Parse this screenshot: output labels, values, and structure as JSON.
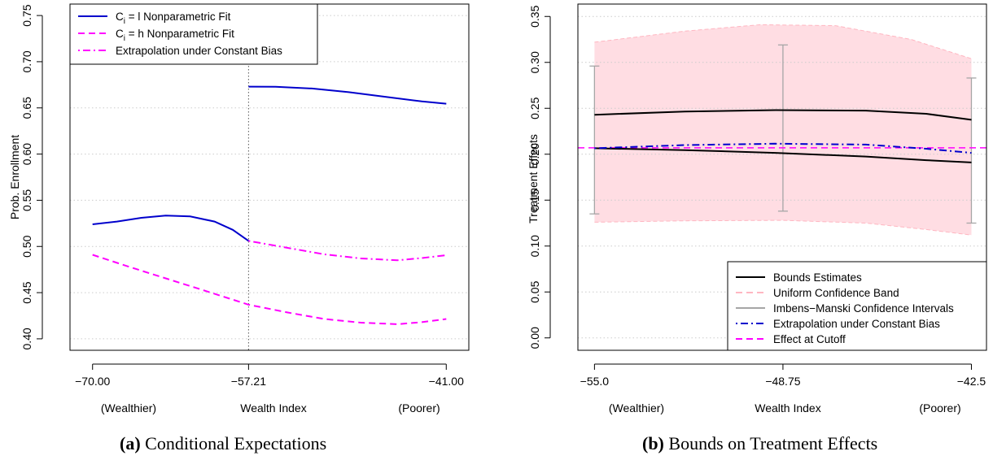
{
  "colors": {
    "blue": "#0000cc",
    "magenta": "#ff00ff",
    "black": "#000000",
    "band_fill": "#ffdde3",
    "band_edge": "#ffb6c1",
    "ci_gray": "#a6a6a6",
    "grid": "#cccccc"
  },
  "captions": {
    "a_tag": "(a)",
    "a_text": "Conditional Expectations",
    "b_tag": "(b)",
    "b_text": "Bounds on Treatment Effects"
  },
  "chart_data": [
    {
      "type": "line",
      "ylabel": "Prob. Enrollment",
      "xlabel": "Wealth Index",
      "xlabel_left": "(Wealthier)",
      "xlabel_right": "(Poorer)",
      "xlim": [
        -70.0,
        -41.0
      ],
      "ylim": [
        0.4,
        0.75
      ],
      "x_ticks": [
        -70.0,
        -57.21,
        -41.0
      ],
      "x_tick_labels": [
        "−70.00",
        "−57.21",
        "−41.00"
      ],
      "y_ticks": [
        0.4,
        0.45,
        0.5,
        0.55,
        0.6,
        0.65,
        0.7,
        0.75
      ],
      "y_tick_labels": [
        "0.40",
        "0.45",
        "0.50",
        "0.55",
        "0.60",
        "0.65",
        "0.70",
        "0.75"
      ],
      "cutoff": -57.21,
      "grid": true,
      "legend_position": "top-left",
      "series": [
        {
          "legend_main": "C",
          "legend_sub": "i",
          "legend_rest": " = l  Nonparametric Fit",
          "style": "solid",
          "color": "#0000cc",
          "segments": [
            [
              [
                -70.0,
                0.524
              ],
              [
                -68.0,
                0.527
              ],
              [
                -66.0,
                0.531
              ],
              [
                -64.0,
                0.5335
              ],
              [
                -62.0,
                0.5325
              ],
              [
                -60.0,
                0.527
              ],
              [
                -58.5,
                0.518
              ],
              [
                -57.21,
                0.506
              ]
            ],
            [
              [
                -57.21,
                0.673
              ],
              [
                -55.0,
                0.6728
              ],
              [
                -52.0,
                0.671
              ],
              [
                -49.0,
                0.667
              ],
              [
                -46.0,
                0.662
              ],
              [
                -43.0,
                0.657
              ],
              [
                -41.0,
                0.6545
              ]
            ]
          ]
        },
        {
          "legend_main": "C",
          "legend_sub": "i",
          "legend_rest": " = h  Nonparametric Fit",
          "style": "dashed",
          "color": "#ff00ff",
          "segments": [
            [
              [
                -70.0,
                0.491
              ],
              [
                -67.0,
                0.478
              ],
              [
                -64.0,
                0.4655
              ],
              [
                -61.0,
                0.453
              ],
              [
                -57.21,
                0.437
              ],
              [
                -54.0,
                0.4285
              ],
              [
                -51.0,
                0.4215
              ],
              [
                -48.0,
                0.4175
              ],
              [
                -45.0,
                0.4158
              ],
              [
                -43.0,
                0.418
              ],
              [
                -41.0,
                0.4215
              ]
            ]
          ]
        },
        {
          "legend_main": "Extrapolation under Constant Bias",
          "style": "dotdash",
          "color": "#ff00ff",
          "segments": [
            [
              [
                -57.21,
                0.506
              ],
              [
                -54.0,
                0.4985
              ],
              [
                -51.0,
                0.4915
              ],
              [
                -48.0,
                0.487
              ],
              [
                -45.0,
                0.485
              ],
              [
                -43.0,
                0.4875
              ],
              [
                -41.0,
                0.4905
              ]
            ]
          ]
        }
      ]
    },
    {
      "type": "line",
      "ylabel": "Treatment Effects",
      "xlabel": "Wealth Index",
      "xlabel_left": "(Wealthier)",
      "xlabel_right": "(Poorer)",
      "xlim": [
        -55.0,
        -42.5
      ],
      "ylim": [
        0.0,
        0.35
      ],
      "x_ticks": [
        -55.0,
        -48.75,
        -42.5
      ],
      "x_tick_labels": [
        "−55.0",
        "−48.75",
        "−42.5"
      ],
      "y_ticks": [
        0.0,
        0.05,
        0.1,
        0.15,
        0.2,
        0.25,
        0.3,
        0.35
      ],
      "y_tick_labels": [
        "0.00",
        "0.05",
        "0.10",
        "0.15",
        "0.20",
        "0.25",
        "0.30",
        "0.35"
      ],
      "grid": true,
      "legend_position": "bottom-right",
      "band": {
        "name": "Uniform Confidence Band",
        "upper": [
          [
            -55.0,
            0.322
          ],
          [
            -52.0,
            0.334
          ],
          [
            -49.5,
            0.341
          ],
          [
            -47.0,
            0.34
          ],
          [
            -44.5,
            0.325
          ],
          [
            -42.5,
            0.304
          ]
        ],
        "lower": [
          [
            -55.0,
            0.126
          ],
          [
            -52.0,
            0.1275
          ],
          [
            -48.75,
            0.128
          ],
          [
            -46.0,
            0.125
          ],
          [
            -44.0,
            0.118
          ],
          [
            -42.5,
            0.112
          ]
        ]
      },
      "bounds_upper": [
        [
          -55.0,
          0.243
        ],
        [
          -52.0,
          0.2465
        ],
        [
          -49.0,
          0.248
        ],
        [
          -46.0,
          0.2475
        ],
        [
          -44.0,
          0.244
        ],
        [
          -42.5,
          0.2375
        ]
      ],
      "bounds_lower": [
        [
          -55.0,
          0.2065
        ],
        [
          -52.0,
          0.2045
        ],
        [
          -49.0,
          0.2015
        ],
        [
          -46.0,
          0.1975
        ],
        [
          -44.0,
          0.1935
        ],
        [
          -42.5,
          0.191
        ]
      ],
      "extrapolation": [
        [
          -55.0,
          0.2065
        ],
        [
          -52.0,
          0.21
        ],
        [
          -49.0,
          0.2115
        ],
        [
          -46.0,
          0.2105
        ],
        [
          -44.0,
          0.206
        ],
        [
          -42.5,
          0.2015
        ]
      ],
      "effect_at_cutoff": 0.207,
      "imbens_manski": [
        {
          "x": -55.0,
          "low": 0.135,
          "high": 0.296
        },
        {
          "x": -48.75,
          "low": 0.138,
          "high": 0.319
        },
        {
          "x": -42.5,
          "low": 0.125,
          "high": 0.283
        }
      ],
      "legend": [
        {
          "label": "Bounds Estimates",
          "style": "solid",
          "color": "#000000"
        },
        {
          "label": "Uniform Confidence Band",
          "style": "dashed",
          "color": "#ffb6c1"
        },
        {
          "label": "Imbens−Manski Confidence Intervals",
          "style": "solid",
          "color": "#a6a6a6"
        },
        {
          "label": "Extrapolation under Constant Bias",
          "style": "dotdash",
          "color": "#0000cc"
        },
        {
          "label": "Effect at Cutoff",
          "style": "dashed",
          "color": "#ff00ff"
        }
      ]
    }
  ]
}
